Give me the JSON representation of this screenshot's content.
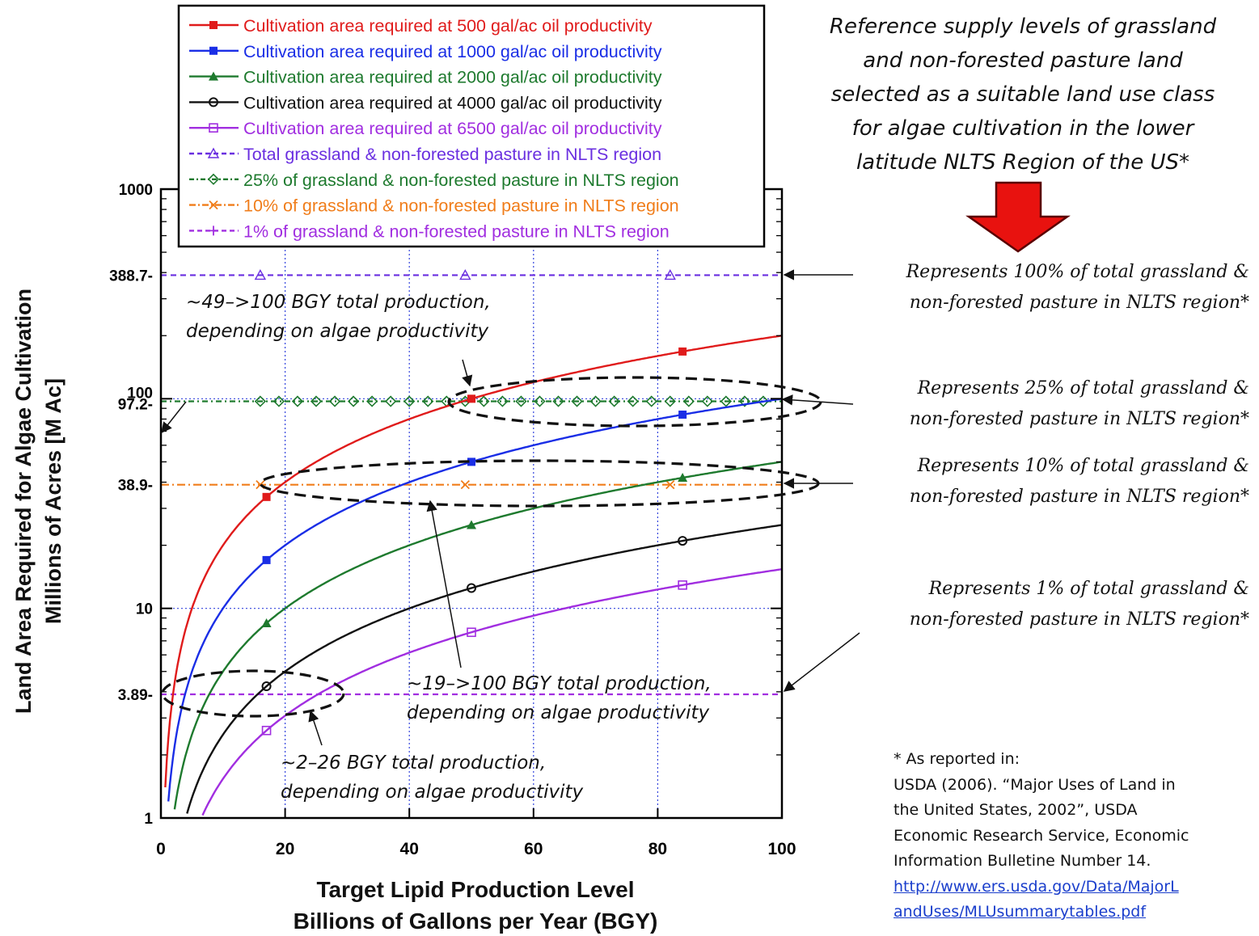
{
  "chart_data": {
    "type": "line",
    "xlabel": [
      "Target Lipid Production Level",
      "Billions of Gallons per Year (BGY)"
    ],
    "ylabel": [
      "Land Area Required for Algae Cultivation",
      "Millions of Acres [M Ac]"
    ],
    "xlim": [
      0,
      100
    ],
    "ylim": [
      1,
      1000
    ],
    "yscale": "log",
    "grid": true,
    "legend_position": "top-inside",
    "x_ticks": [
      0,
      20,
      40,
      60,
      80,
      100
    ],
    "y_ticks": [
      {
        "value": 1,
        "label": "1"
      },
      {
        "value": 3.89,
        "label": "3.89-"
      },
      {
        "value": 10,
        "label": "10"
      },
      {
        "value": 38.9,
        "label": "38.9-"
      },
      {
        "value": 97.2,
        "label": "97.2-"
      },
      {
        "value": 100,
        "label": "100"
      },
      {
        "value": 388.7,
        "label": "388.7-"
      },
      {
        "value": 1000,
        "label": "1000"
      }
    ],
    "series": [
      {
        "name": "Cultivation area required at 500 gal/ac oil productivity",
        "kind": "curve",
        "marker": "square",
        "color": "#e01b1b",
        "acres_per_bgy": 2.0
      },
      {
        "name": "Cultivation area required at 1000 gal/ac oil productivity",
        "kind": "curve",
        "marker": "square",
        "color": "#1a2ee6",
        "acres_per_bgy": 1.0
      },
      {
        "name": "Cultivation area required at 2000 gal/ac oil productivity",
        "kind": "curve",
        "marker": "triangle",
        "color": "#1e7a2e",
        "acres_per_bgy": 0.5
      },
      {
        "name": "Cultivation area required at 4000 gal/ac oil productivity",
        "kind": "curve",
        "marker": "circle",
        "color": "#111111",
        "acres_per_bgy": 0.25
      },
      {
        "name": "Cultivation area required at 6500 gal/ac oil productivity",
        "kind": "curve",
        "marker": "square-open",
        "color": "#a12ee0",
        "acres_per_bgy": 0.1538
      },
      {
        "name": "Total grassland & non-forested pasture in NLTS region",
        "kind": "hline",
        "marker": "triangle-open",
        "color": "#6a2fe0",
        "value": 388.7
      },
      {
        "name": "25% of grassland & non-forested pasture in NLTS region",
        "kind": "hline",
        "marker": "diamond",
        "color": "#1e7a2e",
        "value": 97.2
      },
      {
        "name": "10% of grassland & non-forested pasture in NLTS region",
        "kind": "hline",
        "marker": "x",
        "color": "#f07d1a",
        "value": 38.9
      },
      {
        "name": "1% of grassland & non-forested pasture in NLTS region",
        "kind": "hline",
        "marker": "plus",
        "color": "#a12ee0",
        "value": 3.89
      }
    ],
    "annotations": {
      "a1": [
        "~49–>100 BGY total production,",
        "depending on algae productivity"
      ],
      "a2": [
        "~19–>100 BGY total production,",
        "depending on algae productivity"
      ],
      "a3": [
        "~2–26 BGY total production,",
        "depending on algae productivity"
      ]
    },
    "right_notes": {
      "n100": [
        "Represents 100% of total grassland &",
        "non-forested pasture in NLTS region*"
      ],
      "n25": [
        "Represents 25% of total grassland &",
        "non-forested pasture in NLTS region*"
      ],
      "n10": [
        "Represents 10% of total grassland &",
        "non-forested pasture in NLTS region*"
      ],
      "n1": [
        "Represents 1% of total grassland &",
        "non-forested pasture in NLTS region*"
      ]
    }
  },
  "reference_title": [
    "Reference supply levels of grassland",
    "and non-forested pasture land",
    "selected as a suitable  land use class",
    "for algae cultivation in the lower",
    "latitude NLTS Region of the US*"
  ],
  "footnote": {
    "lines": [
      "* As reported in:",
      "USDA (2006).  “Major Uses of Land in",
      "the United States, 2002”, USDA",
      "Economic Research Service, Economic",
      "Information Bulletine Number 14."
    ],
    "link_lines": [
      "http://www.ers.usda.gov/Data/MajorL",
      "andUses/MLUsummarytables.pdf"
    ]
  }
}
